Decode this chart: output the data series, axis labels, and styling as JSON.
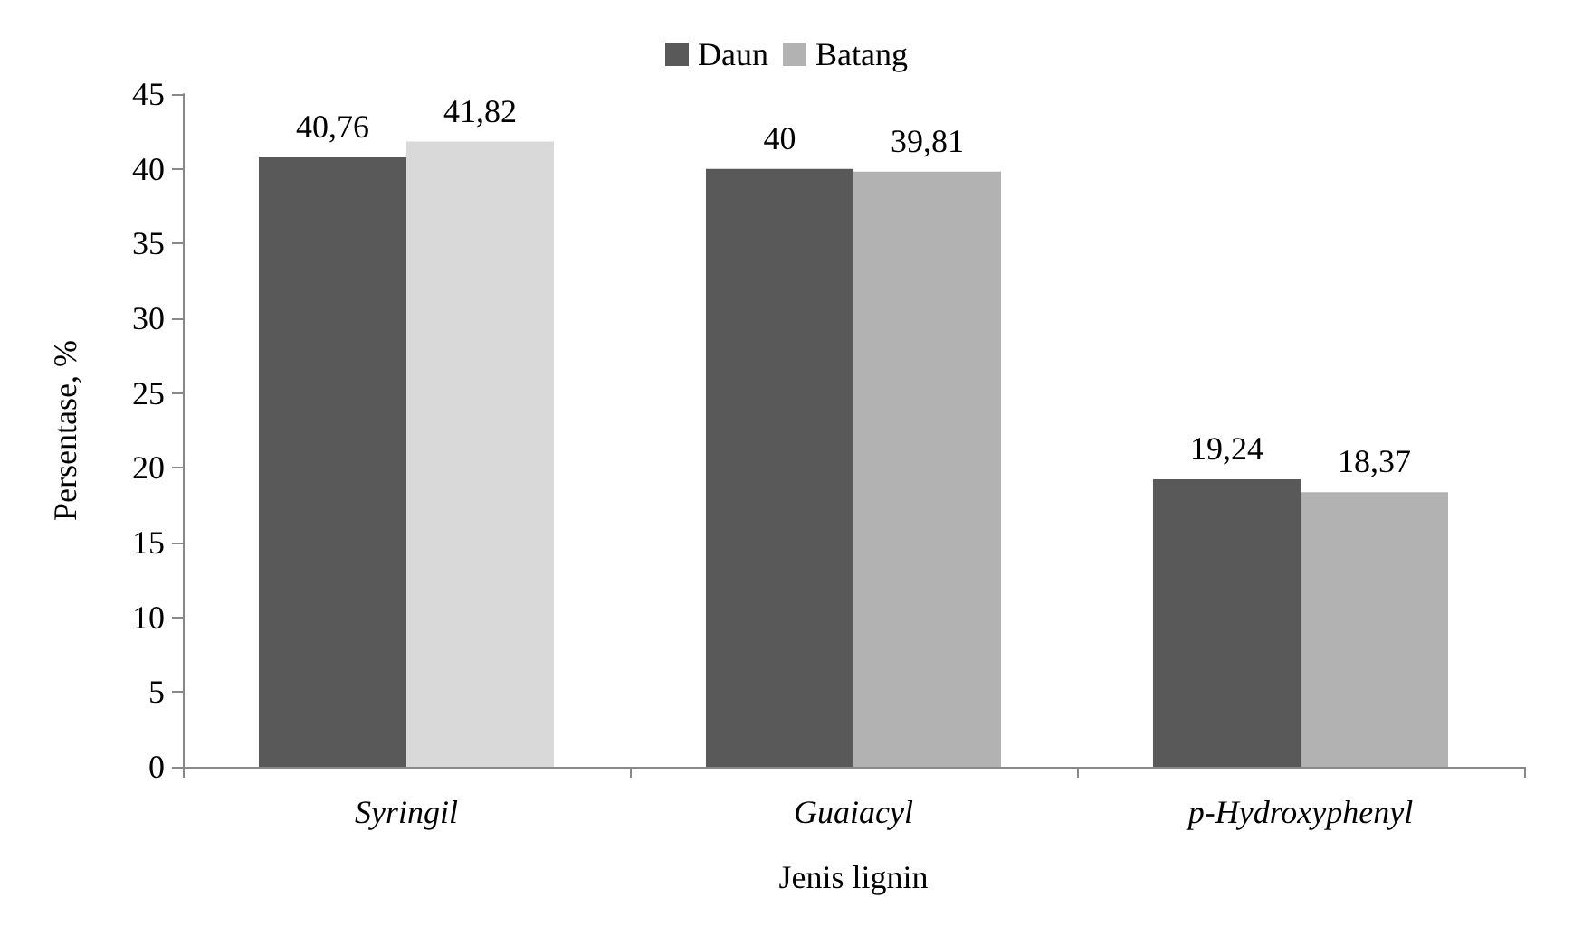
{
  "chart_data": {
    "type": "bar",
    "xlabel": "Jenis lignin",
    "ylabel": "Persentase, %",
    "categories": [
      "Syringil",
      "Guaiacyl",
      "p-Hydroxyphenyl"
    ],
    "series": [
      {
        "name": "Daun",
        "color": "#595959",
        "values": [
          40.76,
          40,
          19.24
        ],
        "value_labels": [
          "40,76",
          "40",
          "19,24"
        ]
      },
      {
        "name": "Batang",
        "color": "#b2b2b2",
        "colors": [
          "#d9d9d9",
          "#b2b2b2",
          "#b2b2b2"
        ],
        "values": [
          41.82,
          39.81,
          18.37
        ],
        "value_labels": [
          "41,82",
          "39,81",
          "18,37"
        ]
      }
    ],
    "ylim": [
      0,
      45
    ],
    "yticks": [
      0,
      5,
      10,
      15,
      20,
      25,
      30,
      35,
      40,
      45
    ],
    "grid": false,
    "legend": "top"
  }
}
